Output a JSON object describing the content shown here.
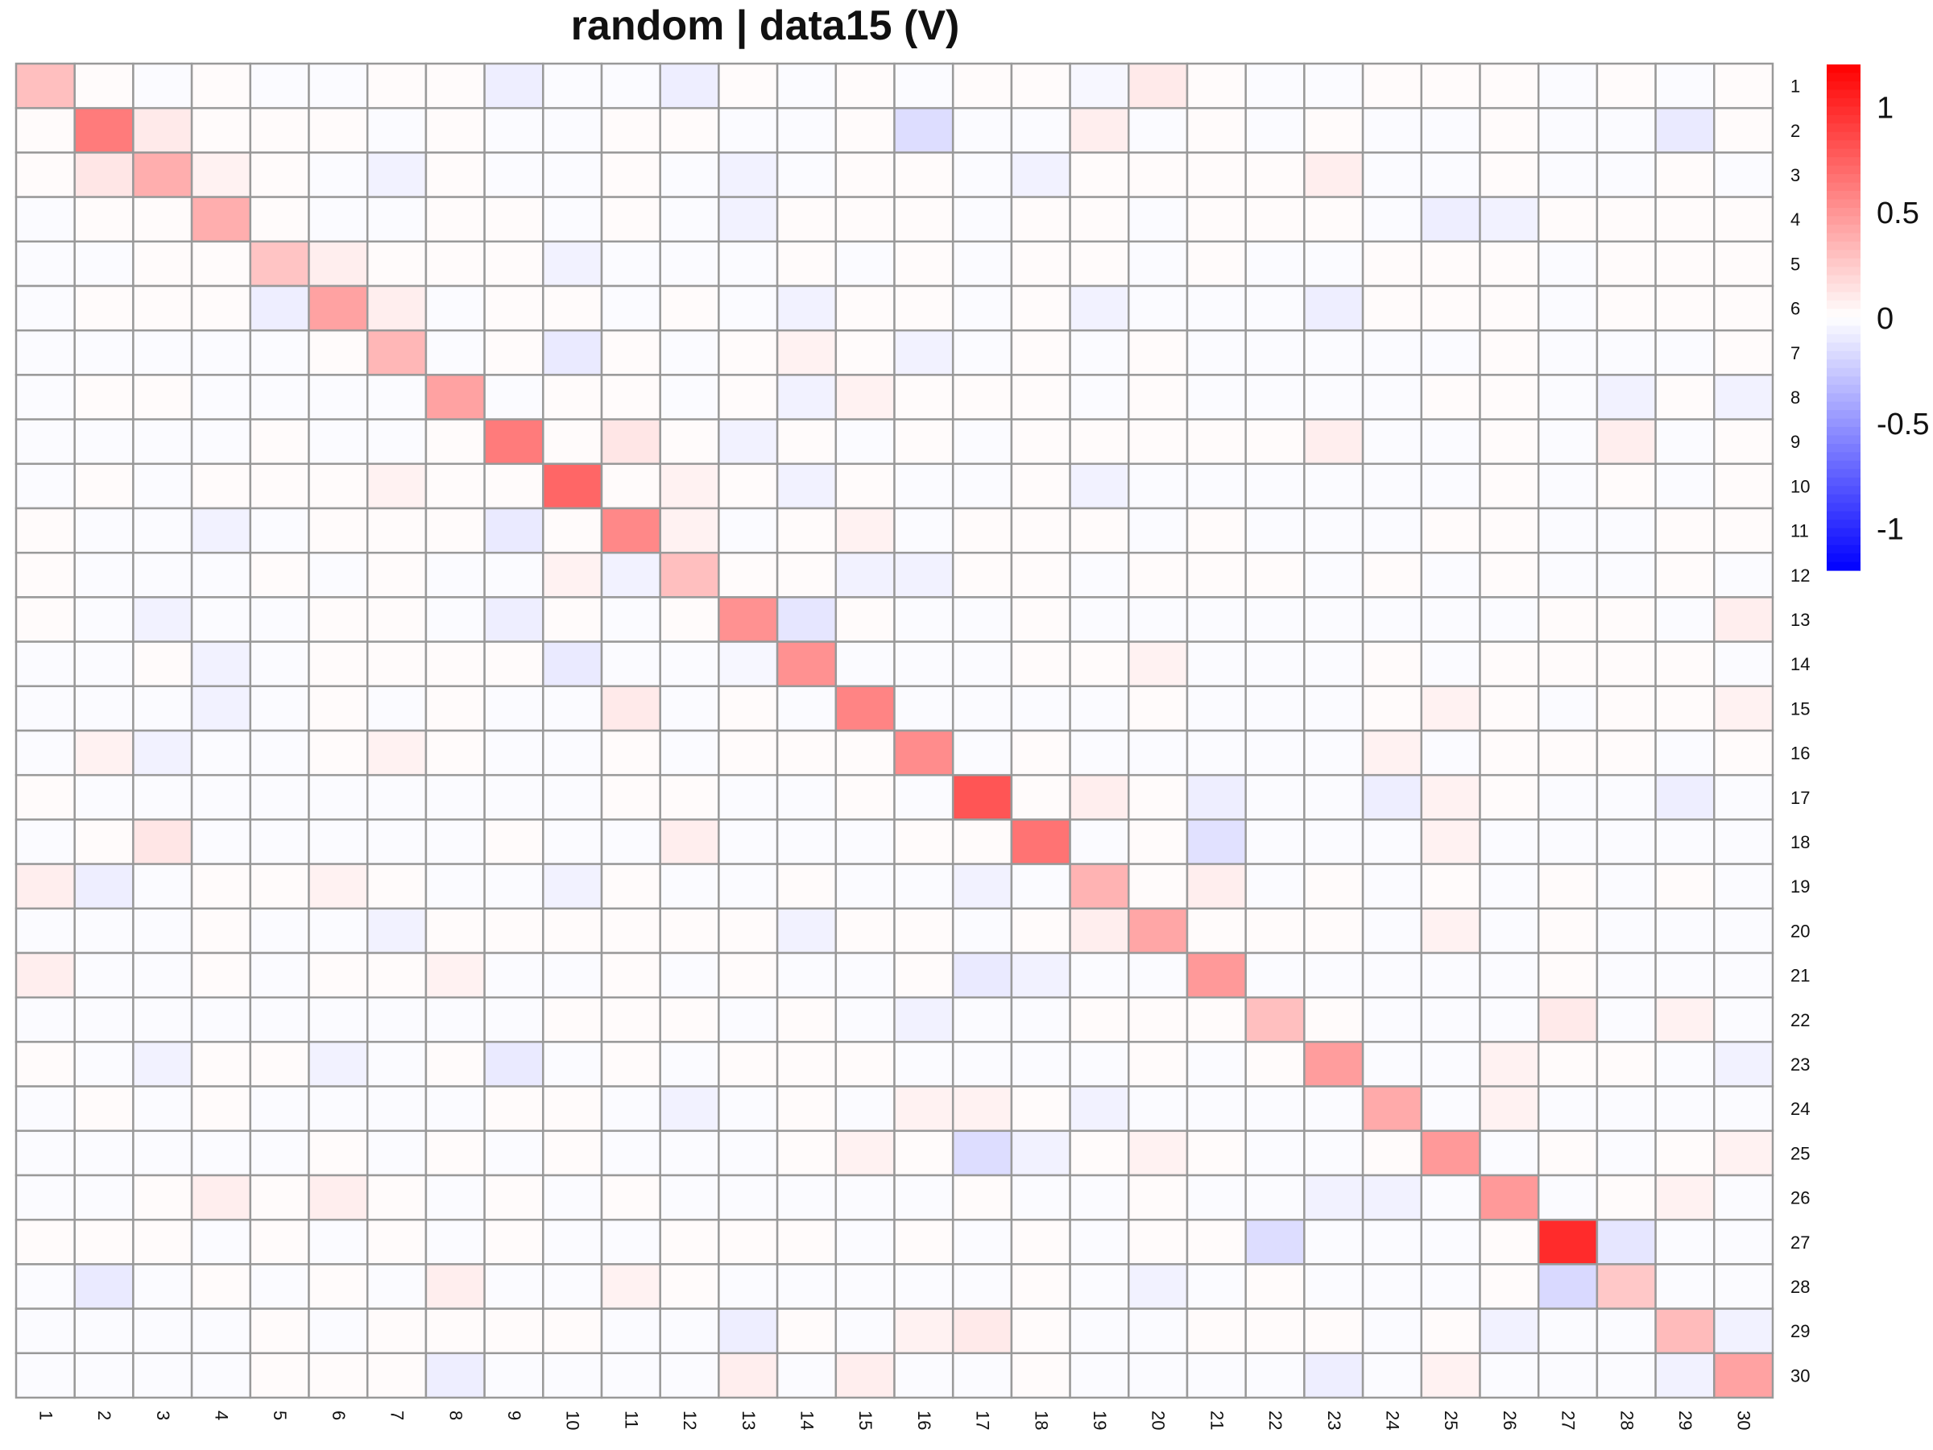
{
  "chart_data": {
    "type": "heatmap",
    "title": "random | data15 (V)",
    "row_labels": [
      "1",
      "2",
      "3",
      "4",
      "5",
      "6",
      "7",
      "8",
      "9",
      "10",
      "11",
      "12",
      "13",
      "14",
      "15",
      "16",
      "17",
      "18",
      "19",
      "20",
      "21",
      "22",
      "23",
      "24",
      "25",
      "26",
      "27",
      "28",
      "29",
      "30"
    ],
    "col_labels": [
      "1",
      "2",
      "3",
      "4",
      "5",
      "6",
      "7",
      "8",
      "9",
      "10",
      "11",
      "12",
      "13",
      "14",
      "15",
      "16",
      "17",
      "18",
      "19",
      "20",
      "21",
      "22",
      "23",
      "24",
      "25",
      "26",
      "27",
      "28",
      "29",
      "30"
    ],
    "values": [
      [
        0.3,
        0.02,
        -0.02,
        0.02,
        -0.02,
        -0.02,
        0.02,
        0.02,
        -0.08,
        -0.02,
        -0.02,
        -0.08,
        0.02,
        -0.02,
        0.02,
        -0.02,
        0.02,
        0.02,
        -0.04,
        0.1,
        0.02,
        -0.02,
        -0.02,
        0.02,
        0.02,
        0.02,
        -0.02,
        0.02,
        -0.02,
        0.02
      ],
      [
        0.02,
        0.62,
        0.1,
        0.02,
        0.02,
        0.02,
        -0.02,
        0.02,
        -0.02,
        -0.02,
        0.02,
        0.02,
        -0.02,
        -0.02,
        0.02,
        -0.16,
        -0.02,
        -0.02,
        0.08,
        -0.02,
        0.02,
        -0.02,
        0.02,
        -0.02,
        -0.02,
        0.02,
        -0.02,
        -0.02,
        -0.1,
        0.02
      ],
      [
        0.02,
        0.12,
        0.38,
        0.06,
        0.02,
        -0.02,
        -0.06,
        0.02,
        -0.02,
        -0.02,
        0.02,
        -0.02,
        -0.06,
        -0.02,
        0.02,
        0.02,
        -0.02,
        -0.06,
        0.02,
        0.02,
        0.02,
        0.02,
        0.08,
        -0.02,
        -0.02,
        0.02,
        -0.02,
        -0.02,
        0.02,
        -0.02
      ],
      [
        -0.02,
        0.02,
        0.02,
        0.38,
        0.02,
        -0.02,
        -0.02,
        0.02,
        0.02,
        -0.02,
        0.02,
        -0.02,
        -0.06,
        0.02,
        0.02,
        0.02,
        -0.02,
        0.02,
        0.02,
        -0.02,
        0.02,
        0.02,
        0.02,
        -0.02,
        -0.08,
        -0.06,
        0.02,
        0.02,
        0.02,
        0.02
      ],
      [
        -0.02,
        -0.02,
        0.02,
        0.02,
        0.28,
        0.08,
        0.02,
        0.02,
        0.02,
        -0.06,
        -0.02,
        -0.02,
        -0.02,
        0.02,
        -0.02,
        0.02,
        -0.02,
        0.02,
        0.02,
        -0.02,
        0.02,
        -0.02,
        -0.02,
        0.02,
        0.02,
        0.02,
        -0.02,
        0.02,
        0.02,
        0.02
      ],
      [
        -0.02,
        0.02,
        0.02,
        0.02,
        -0.08,
        0.44,
        0.08,
        -0.02,
        0.02,
        0.02,
        -0.02,
        0.02,
        -0.02,
        -0.06,
        0.02,
        0.02,
        -0.02,
        0.02,
        -0.06,
        -0.02,
        -0.02,
        -0.02,
        -0.08,
        0.02,
        0.02,
        0.02,
        -0.02,
        0.02,
        0.02,
        0.02
      ],
      [
        -0.02,
        -0.02,
        -0.02,
        -0.02,
        -0.02,
        0.02,
        0.34,
        -0.02,
        0.02,
        -0.1,
        0.02,
        -0.02,
        0.02,
        0.06,
        0.02,
        -0.06,
        -0.02,
        0.02,
        -0.02,
        0.02,
        -0.02,
        -0.02,
        -0.02,
        -0.02,
        -0.02,
        0.02,
        -0.02,
        -0.02,
        -0.02,
        0.02
      ],
      [
        -0.02,
        0.02,
        0.02,
        -0.02,
        -0.02,
        -0.02,
        -0.02,
        0.44,
        -0.02,
        0.02,
        0.02,
        -0.02,
        0.02,
        -0.06,
        0.06,
        0.02,
        0.02,
        0.02,
        -0.02,
        0.02,
        -0.02,
        -0.02,
        -0.02,
        -0.02,
        0.02,
        0.02,
        -0.02,
        -0.06,
        0.02,
        -0.06
      ],
      [
        -0.02,
        -0.02,
        -0.02,
        -0.02,
        0.02,
        -0.02,
        -0.02,
        0.02,
        0.62,
        0.02,
        0.12,
        0.02,
        -0.06,
        0.02,
        -0.02,
        0.02,
        -0.02,
        0.02,
        0.02,
        0.02,
        0.02,
        0.02,
        0.08,
        -0.02,
        -0.02,
        0.02,
        -0.02,
        0.08,
        -0.02,
        0.02
      ],
      [
        -0.02,
        0.02,
        -0.02,
        0.02,
        0.02,
        0.02,
        0.06,
        0.02,
        0.02,
        0.72,
        0.02,
        0.06,
        0.02,
        -0.06,
        0.02,
        -0.02,
        -0.02,
        0.02,
        -0.06,
        -0.02,
        -0.02,
        -0.02,
        -0.02,
        -0.02,
        -0.02,
        0.02,
        -0.02,
        0.02,
        -0.02,
        0.02
      ],
      [
        0.02,
        -0.02,
        -0.02,
        -0.06,
        -0.02,
        0.02,
        0.02,
        0.02,
        -0.1,
        0.02,
        0.56,
        0.06,
        -0.02,
        0.02,
        0.06,
        -0.02,
        0.02,
        0.02,
        0.02,
        -0.02,
        0.02,
        -0.02,
        -0.02,
        -0.02,
        0.02,
        0.02,
        -0.02,
        -0.02,
        0.02,
        0.02
      ],
      [
        0.02,
        -0.02,
        -0.02,
        -0.02,
        0.02,
        -0.02,
        0.02,
        -0.02,
        -0.02,
        0.06,
        -0.06,
        0.3,
        0.02,
        0.02,
        -0.06,
        -0.06,
        0.02,
        0.02,
        -0.02,
        0.02,
        0.02,
        0.02,
        -0.02,
        0.02,
        -0.02,
        0.02,
        -0.02,
        -0.02,
        0.02,
        -0.02
      ],
      [
        0.02,
        -0.02,
        -0.06,
        -0.02,
        -0.02,
        0.02,
        0.02,
        -0.02,
        -0.08,
        0.02,
        -0.02,
        0.02,
        0.52,
        -0.12,
        0.02,
        -0.02,
        -0.02,
        0.02,
        -0.02,
        -0.02,
        -0.02,
        -0.02,
        -0.02,
        -0.02,
        -0.02,
        -0.02,
        0.02,
        0.02,
        -0.02,
        0.08
      ],
      [
        -0.02,
        -0.02,
        0.02,
        -0.06,
        -0.02,
        0.02,
        0.02,
        0.02,
        0.02,
        -0.1,
        -0.02,
        -0.02,
        -0.04,
        0.52,
        -0.02,
        -0.02,
        -0.02,
        0.02,
        0.02,
        0.06,
        -0.02,
        -0.02,
        -0.02,
        0.02,
        -0.02,
        0.02,
        0.02,
        0.02,
        0.02,
        -0.02
      ],
      [
        -0.02,
        -0.02,
        -0.02,
        -0.06,
        -0.02,
        0.02,
        -0.02,
        0.02,
        -0.02,
        -0.02,
        0.1,
        -0.02,
        0.02,
        -0.02,
        0.58,
        -0.02,
        -0.02,
        -0.02,
        -0.02,
        0.02,
        -0.02,
        -0.02,
        -0.02,
        0.02,
        0.06,
        0.02,
        -0.02,
        0.02,
        0.02,
        0.06
      ],
      [
        -0.02,
        0.06,
        -0.06,
        -0.02,
        -0.02,
        0.02,
        0.06,
        0.02,
        -0.02,
        -0.02,
        0.02,
        -0.02,
        0.02,
        0.02,
        0.02,
        0.54,
        -0.02,
        0.02,
        -0.02,
        -0.02,
        -0.02,
        -0.02,
        -0.02,
        0.06,
        -0.02,
        0.02,
        0.02,
        0.02,
        -0.02,
        0.02
      ],
      [
        0.02,
        -0.02,
        -0.02,
        -0.02,
        -0.02,
        -0.02,
        -0.02,
        -0.02,
        -0.02,
        -0.02,
        0.02,
        0.02,
        -0.02,
        -0.02,
        0.02,
        -0.02,
        0.8,
        0.02,
        0.08,
        0.02,
        -0.08,
        -0.02,
        -0.02,
        -0.08,
        0.06,
        0.02,
        -0.02,
        -0.02,
        -0.08,
        -0.02
      ],
      [
        -0.02,
        0.02,
        0.12,
        -0.02,
        -0.02,
        -0.02,
        -0.02,
        -0.02,
        0.02,
        -0.02,
        -0.02,
        0.08,
        -0.02,
        -0.02,
        -0.02,
        0.02,
        0.02,
        0.66,
        -0.02,
        0.02,
        -0.14,
        -0.02,
        -0.02,
        -0.02,
        0.06,
        -0.02,
        -0.02,
        -0.02,
        -0.02,
        -0.02
      ],
      [
        0.08,
        -0.08,
        -0.02,
        0.02,
        0.02,
        0.06,
        0.02,
        -0.02,
        -0.02,
        -0.06,
        0.02,
        -0.02,
        -0.02,
        0.02,
        -0.02,
        -0.02,
        -0.06,
        -0.02,
        0.36,
        0.02,
        0.08,
        -0.02,
        0.02,
        -0.02,
        0.02,
        -0.02,
        0.02,
        -0.02,
        0.02,
        -0.02
      ],
      [
        -0.02,
        -0.02,
        -0.02,
        0.02,
        -0.02,
        -0.02,
        -0.06,
        0.02,
        0.02,
        0.02,
        0.02,
        0.02,
        0.02,
        -0.06,
        0.02,
        0.02,
        -0.02,
        0.02,
        0.08,
        0.42,
        0.02,
        0.02,
        0.02,
        -0.02,
        0.06,
        -0.02,
        0.02,
        -0.02,
        -0.02,
        -0.02
      ],
      [
        0.08,
        -0.02,
        -0.02,
        0.02,
        -0.02,
        0.02,
        0.02,
        0.06,
        -0.02,
        -0.02,
        0.02,
        -0.02,
        0.02,
        -0.02,
        -0.02,
        0.02,
        -0.1,
        -0.06,
        -0.02,
        -0.02,
        0.48,
        -0.02,
        -0.02,
        -0.02,
        -0.02,
        -0.02,
        0.02,
        -0.02,
        -0.02,
        -0.02
      ],
      [
        -0.02,
        -0.02,
        -0.02,
        -0.02,
        -0.02,
        -0.02,
        -0.02,
        -0.02,
        -0.02,
        0.02,
        0.02,
        0.02,
        -0.02,
        0.02,
        -0.02,
        -0.06,
        -0.02,
        -0.02,
        0.02,
        0.02,
        0.02,
        0.3,
        0.02,
        -0.02,
        -0.02,
        -0.02,
        0.1,
        -0.02,
        0.06,
        -0.02
      ],
      [
        0.02,
        -0.02,
        -0.06,
        0.02,
        0.02,
        -0.06,
        -0.02,
        0.02,
        -0.1,
        -0.02,
        0.02,
        -0.02,
        0.02,
        0.02,
        0.02,
        -0.02,
        -0.02,
        -0.02,
        -0.02,
        0.02,
        -0.02,
        0.02,
        0.46,
        -0.02,
        -0.02,
        0.06,
        0.02,
        0.02,
        -0.02,
        -0.06
      ],
      [
        -0.02,
        0.02,
        -0.02,
        0.02,
        -0.02,
        -0.02,
        -0.02,
        -0.02,
        0.02,
        0.02,
        -0.02,
        -0.06,
        -0.02,
        0.02,
        -0.02,
        0.06,
        0.06,
        0.02,
        -0.06,
        -0.02,
        -0.02,
        -0.02,
        -0.02,
        0.4,
        -0.02,
        0.06,
        -0.02,
        -0.02,
        -0.02,
        -0.02
      ],
      [
        -0.02,
        -0.02,
        -0.02,
        -0.02,
        -0.02,
        0.02,
        -0.02,
        0.02,
        -0.02,
        0.02,
        -0.02,
        -0.02,
        -0.02,
        0.02,
        0.06,
        0.02,
        -0.16,
        -0.06,
        0.02,
        0.06,
        0.02,
        -0.02,
        -0.02,
        0.02,
        0.48,
        -0.02,
        0.02,
        -0.02,
        0.02,
        0.06
      ],
      [
        -0.02,
        -0.02,
        0.02,
        0.08,
        0.02,
        0.08,
        0.02,
        -0.02,
        0.02,
        -0.02,
        0.02,
        -0.02,
        -0.02,
        -0.02,
        -0.02,
        -0.02,
        0.02,
        -0.02,
        -0.02,
        0.02,
        -0.02,
        -0.02,
        -0.06,
        -0.06,
        -0.02,
        0.48,
        -0.02,
        0.02,
        0.06,
        -0.02
      ],
      [
        0.02,
        0.02,
        0.02,
        -0.02,
        0.02,
        -0.02,
        0.02,
        -0.02,
        0.02,
        -0.02,
        -0.02,
        0.02,
        0.02,
        0.02,
        -0.02,
        0.02,
        -0.02,
        0.02,
        -0.02,
        0.02,
        0.02,
        -0.16,
        -0.02,
        -0.02,
        -0.02,
        0.02,
        1.0,
        -0.12,
        -0.02,
        -0.02
      ],
      [
        -0.02,
        -0.1,
        -0.02,
        0.02,
        -0.02,
        0.02,
        -0.02,
        0.08,
        -0.02,
        -0.02,
        0.06,
        0.02,
        -0.02,
        -0.02,
        -0.02,
        -0.02,
        -0.02,
        0.02,
        -0.02,
        -0.06,
        -0.02,
        0.02,
        -0.02,
        -0.02,
        -0.02,
        0.02,
        -0.18,
        0.26,
        -0.02,
        -0.02
      ],
      [
        -0.02,
        -0.02,
        -0.02,
        -0.02,
        0.02,
        -0.02,
        0.02,
        0.02,
        0.02,
        0.02,
        -0.02,
        -0.02,
        -0.08,
        0.02,
        -0.02,
        0.06,
        0.1,
        0.02,
        -0.02,
        -0.02,
        0.02,
        0.02,
        0.02,
        -0.02,
        0.02,
        -0.06,
        -0.02,
        -0.02,
        0.32,
        -0.06
      ],
      [
        -0.02,
        -0.02,
        -0.02,
        -0.02,
        0.02,
        0.02,
        0.02,
        -0.08,
        -0.02,
        -0.02,
        -0.02,
        -0.02,
        0.08,
        -0.02,
        0.08,
        -0.02,
        -0.02,
        0.02,
        -0.02,
        -0.02,
        -0.02,
        -0.02,
        -0.08,
        -0.02,
        0.06,
        -0.02,
        -0.02,
        -0.02,
        -0.06,
        0.44
      ]
    ],
    "colorbar": {
      "range": [
        -1.2,
        1.2
      ],
      "ticks": [
        1,
        0.5,
        0,
        -0.5,
        -1
      ],
      "tick_labels": [
        "1",
        "0.5",
        "0",
        "-0.5",
        "-1"
      ],
      "low_color": "#0000ff",
      "mid_color": "#ffffff",
      "high_color": "#ff0000"
    },
    "grid_color": "#999999"
  }
}
